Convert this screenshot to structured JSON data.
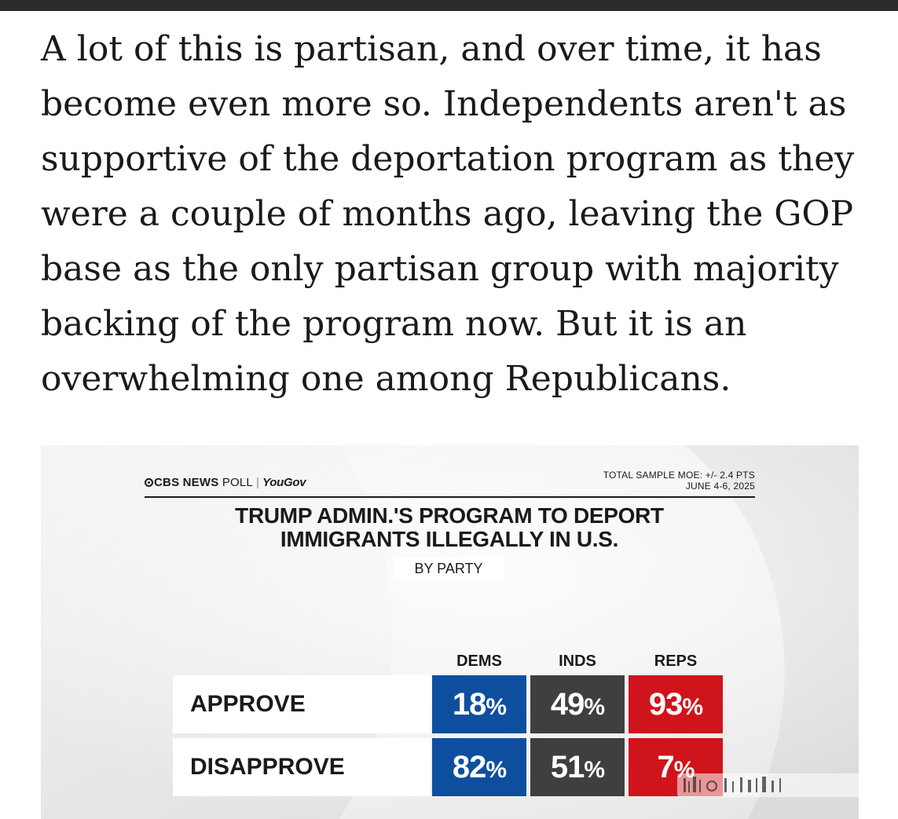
{
  "article": {
    "paragraph": "A lot of this is partisan, and over time, it has become even more so. Independents aren't as supportive of the deportation program as they were a couple of months ago, leaving the GOP base as the only partisan group with majority backing of the program now. But it is an overwhelming one among Republicans."
  },
  "poll": {
    "source_cbs": "CBS NEWS",
    "source_poll": "POLL",
    "source_yougov": "YouGov",
    "moe_line1": "TOTAL SAMPLE MOE: +/- 2.4 PTS",
    "moe_line2": "JUNE 4-6, 2025"
  },
  "chart_data": {
    "type": "table",
    "title_line1": "TRUMP ADMIN.'S PROGRAM TO DEPORT",
    "title_line2": "IMMIGRANTS ILLEGALLY IN U.S.",
    "subtitle": "BY PARTY",
    "columns": [
      "DEMS",
      "INDS",
      "REPS"
    ],
    "rows": [
      {
        "label": "APPROVE",
        "values": [
          18,
          49,
          93
        ]
      },
      {
        "label": "DISAPPROVE",
        "values": [
          82,
          51,
          7
        ]
      }
    ],
    "unit": "%",
    "colors": {
      "DEMS": "#0d4f9e",
      "INDS": "#3f3f3f",
      "REPS": "#d0141c"
    }
  },
  "overlay": {
    "watermark_icon": "platform-watermark-icon"
  }
}
